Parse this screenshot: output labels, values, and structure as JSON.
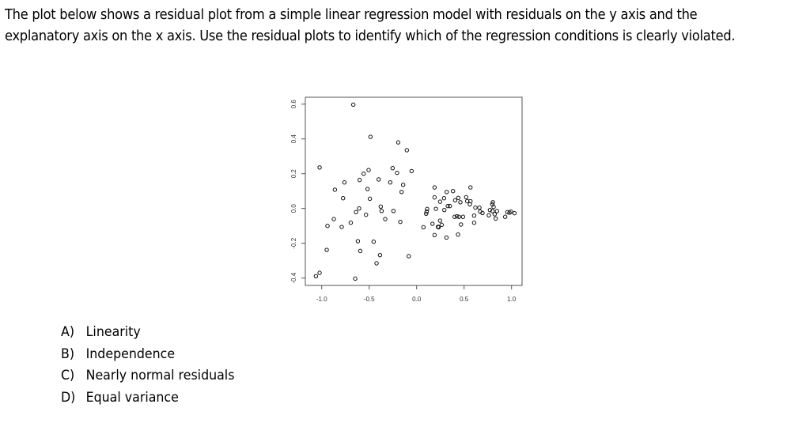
{
  "question": {
    "line1": "The plot below shows a residual plot from a simple linear regression model with residuals on the y axis and the",
    "line2": "explanatory axis on the x axis.  Use the residual plots to identify which of the regression conditions is clearly violated."
  },
  "options": [
    {
      "letter": "A)",
      "text": "Linearity"
    },
    {
      "letter": "B)",
      "text": "Independence"
    },
    {
      "letter": "C)",
      "text": "Nearly normal residuals"
    },
    {
      "letter": "D)",
      "text": "Equal variance"
    }
  ],
  "chart_data": {
    "type": "scatter",
    "title": "",
    "xlabel": "",
    "ylabel": "",
    "xlim": [
      -1.1,
      1.1
    ],
    "ylim": [
      -0.43,
      0.62
    ],
    "xticks": [
      "-1.0",
      "-0.5",
      "0.0",
      "0.5",
      "1.0"
    ],
    "yticks": [
      "-0.4",
      "-0.2",
      "0.0",
      "0.2",
      "0.4",
      "0.6"
    ],
    "marker": "open-circle",
    "grid": false,
    "points": [
      [
        -0.667,
        0.597
      ],
      [
        -0.486,
        0.412
      ],
      [
        -0.194,
        0.38
      ],
      [
        -0.103,
        0.335
      ],
      [
        -1.022,
        0.236
      ],
      [
        -0.506,
        0.221
      ],
      [
        -0.253,
        0.232
      ],
      [
        -0.558,
        0.2
      ],
      [
        -0.206,
        0.205
      ],
      [
        -0.053,
        0.215
      ],
      [
        -0.6,
        0.164
      ],
      [
        -0.4,
        0.167
      ],
      [
        -0.761,
        0.15
      ],
      [
        -0.278,
        0.15
      ],
      [
        -0.142,
        0.136
      ],
      [
        -0.861,
        0.108
      ],
      [
        -0.517,
        0.112
      ],
      [
        -0.158,
        0.095
      ],
      [
        -0.775,
        0.059
      ],
      [
        -0.492,
        0.056
      ],
      [
        -0.378,
        0.011
      ],
      [
        -0.606,
        0.0
      ],
      [
        -0.639,
        -0.021
      ],
      [
        -0.369,
        -0.014
      ],
      [
        -0.244,
        -0.014
      ],
      [
        -0.533,
        -0.036
      ],
      [
        -0.872,
        -0.061
      ],
      [
        -0.331,
        -0.061
      ],
      [
        -0.694,
        -0.082
      ],
      [
        -0.172,
        -0.077
      ],
      [
        -0.939,
        -0.1
      ],
      [
        -0.789,
        -0.106
      ],
      [
        -0.619,
        -0.188
      ],
      [
        -0.453,
        -0.191
      ],
      [
        -0.947,
        -0.238
      ],
      [
        -0.594,
        -0.244
      ],
      [
        -0.386,
        -0.268
      ],
      [
        -0.083,
        -0.274
      ],
      [
        -0.422,
        -0.315
      ],
      [
        -1.022,
        -0.37
      ],
      [
        -1.061,
        -0.389
      ],
      [
        -0.647,
        -0.403
      ],
      [
        0.189,
        0.121
      ],
      [
        0.317,
        0.095
      ],
      [
        0.383,
        0.1
      ],
      [
        0.567,
        0.121
      ],
      [
        0.189,
        0.064
      ],
      [
        0.289,
        0.059
      ],
      [
        0.247,
        0.039
      ],
      [
        0.406,
        0.047
      ],
      [
        0.439,
        0.061
      ],
      [
        0.461,
        0.036
      ],
      [
        0.522,
        0.065
      ],
      [
        0.533,
        0.042
      ],
      [
        0.567,
        0.042
      ],
      [
        0.561,
        0.024
      ],
      [
        0.111,
        -0.003
      ],
      [
        0.106,
        -0.018
      ],
      [
        0.1,
        -0.03
      ],
      [
        0.203,
        -0.002
      ],
      [
        0.328,
        0.014
      ],
      [
        0.35,
        0.014
      ],
      [
        0.292,
        -0.009
      ],
      [
        0.4,
        -0.048
      ],
      [
        0.425,
        -0.045
      ],
      [
        0.447,
        -0.048
      ],
      [
        0.489,
        -0.048
      ],
      [
        0.619,
        0.005
      ],
      [
        0.661,
        0.005
      ],
      [
        0.606,
        -0.041
      ],
      [
        0.669,
        -0.018
      ],
      [
        0.694,
        -0.026
      ],
      [
        0.761,
        -0.039
      ],
      [
        0.772,
        -0.009
      ],
      [
        0.803,
        0.036
      ],
      [
        0.797,
        0.024
      ],
      [
        0.811,
        0.009
      ],
      [
        0.8,
        -0.015
      ],
      [
        0.822,
        -0.033
      ],
      [
        0.847,
        -0.015
      ],
      [
        0.833,
        -0.058
      ],
      [
        0.933,
        -0.048
      ],
      [
        0.956,
        -0.021
      ],
      [
        0.978,
        -0.024
      ],
      [
        0.994,
        -0.018
      ],
      [
        1.031,
        -0.027
      ],
      [
        0.072,
        -0.108
      ],
      [
        0.167,
        -0.088
      ],
      [
        0.247,
        -0.07
      ],
      [
        0.264,
        -0.094
      ],
      [
        0.231,
        -0.108
      ],
      [
        0.225,
        -0.105
      ],
      [
        0.467,
        -0.092
      ],
      [
        0.606,
        -0.082
      ],
      [
        0.189,
        -0.153
      ],
      [
        0.314,
        -0.167
      ],
      [
        0.436,
        -0.15
      ]
    ]
  }
}
